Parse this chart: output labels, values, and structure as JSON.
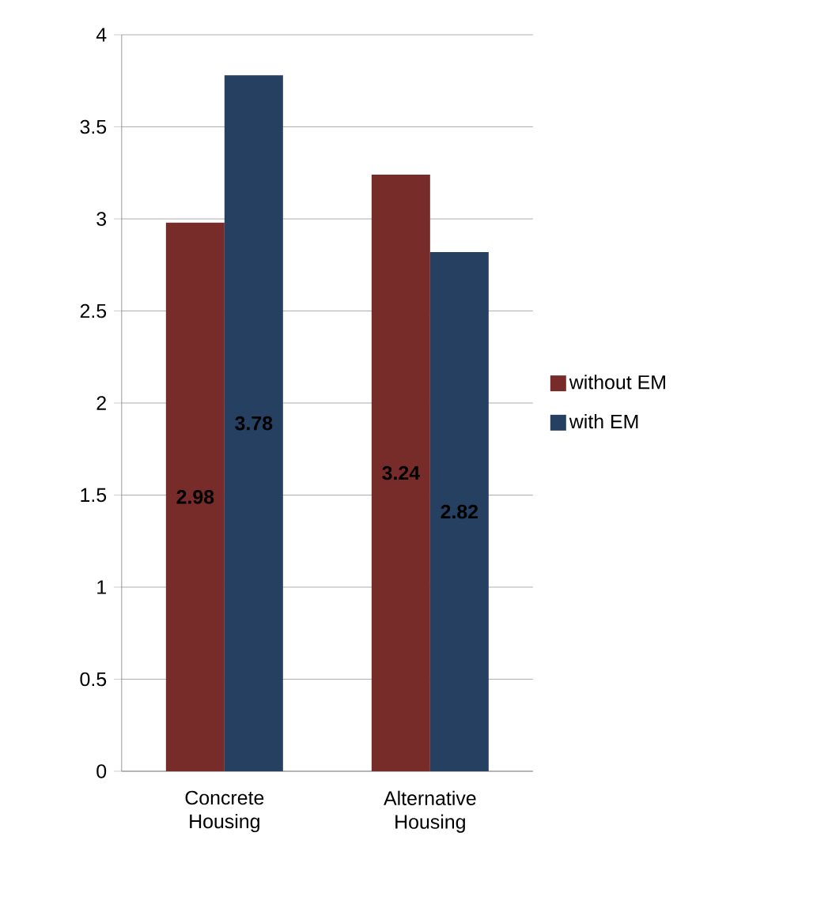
{
  "chart_data": {
    "type": "bar",
    "categories": [
      "Concrete Housing",
      "Alternative Housing"
    ],
    "series": [
      {
        "name": "without EM",
        "color": "#772c2a",
        "values": [
          2.98,
          3.24
        ],
        "value_labels": [
          "2.98",
          "3.24"
        ]
      },
      {
        "name": "with EM",
        "color": "#254061",
        "values": [
          3.78,
          2.82
        ],
        "value_labels": [
          "3.78",
          "2.82"
        ]
      }
    ],
    "ylim": [
      0,
      4
    ],
    "yticks": [
      0,
      0.5,
      1,
      1.5,
      2,
      2.5,
      3,
      3.5,
      4
    ],
    "grid": "y",
    "legend": "right"
  }
}
